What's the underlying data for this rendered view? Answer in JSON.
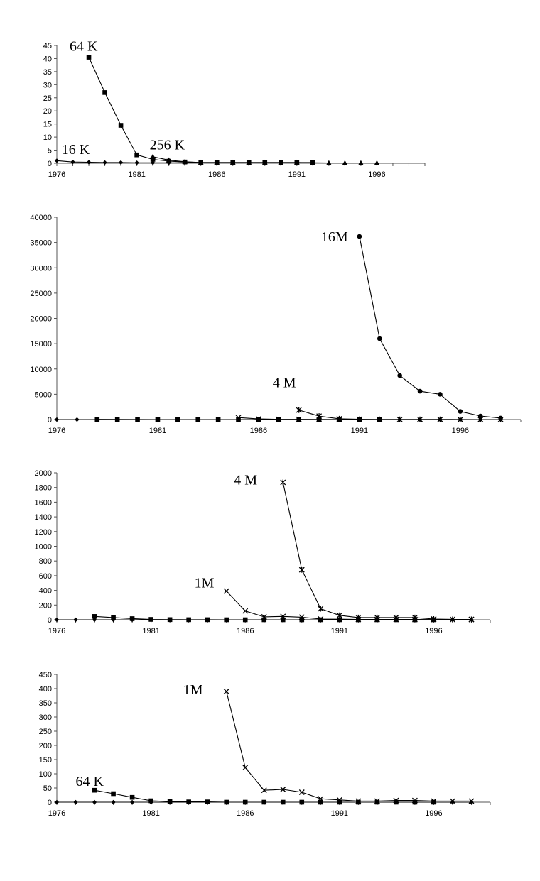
{
  "chart_data": [
    {
      "type": "line",
      "xlim": [
        1976,
        1999
      ],
      "ylim": [
        0,
        45
      ],
      "yticks": [
        0,
        5,
        10,
        15,
        20,
        25,
        30,
        35,
        40,
        45
      ],
      "xticks": [
        1976,
        1981,
        1986,
        1991,
        1996
      ],
      "grid": false,
      "series": [
        {
          "marker": "diamond",
          "x": [
            1976,
            1977,
            1978,
            1979,
            1980,
            1981,
            1982,
            1983,
            1984,
            1985,
            1986,
            1987,
            1988,
            1989,
            1990,
            1991,
            1992
          ],
          "y": [
            1.0,
            0.5,
            0.4,
            0.3,
            0.3,
            0.2,
            0.2,
            0.2,
            0.2,
            0.2,
            0.2,
            0.2,
            0.2,
            0.2,
            0.2,
            0.2,
            0.2
          ]
        },
        {
          "marker": "square",
          "x": [
            1978,
            1979,
            1980,
            1981,
            1982,
            1983,
            1984,
            1985,
            1986,
            1987,
            1988,
            1989,
            1990,
            1991,
            1992
          ],
          "y": [
            40.5,
            27,
            14.5,
            3.2,
            1.5,
            0.8,
            0.5,
            0.3,
            0.3,
            0.3,
            0.3,
            0.3,
            0.3,
            0.3,
            0.3
          ]
        },
        {
          "marker": "triangle",
          "x": [
            1982,
            1983,
            1984,
            1985,
            1986,
            1987,
            1988,
            1989,
            1990,
            1991,
            1992,
            1993,
            1994,
            1995,
            1996
          ],
          "y": [
            2.5,
            1.2,
            0.6,
            0.3,
            0.3,
            0.3,
            0.3,
            0.3,
            0.3,
            0.3,
            0.2,
            0.1,
            0.1,
            0.1,
            0.1
          ]
        }
      ],
      "annotations": [
        {
          "text": "64 K",
          "x": 1976.8,
          "y": 43
        },
        {
          "text": "16 K",
          "x": 1976.3,
          "y": 3.5
        },
        {
          "text": "256 K",
          "x": 1981.8,
          "y": 5.3
        }
      ]
    },
    {
      "type": "line",
      "xlim": [
        1976,
        1999
      ],
      "ylim": [
        0,
        40000
      ],
      "yticks": [
        0,
        5000,
        10000,
        15000,
        20000,
        25000,
        30000,
        35000,
        40000
      ],
      "xticks": [
        1976,
        1981,
        1986,
        1991,
        1996
      ],
      "grid": false,
      "series": [
        {
          "marker": "diamond",
          "x": [
            1976,
            1977,
            1978,
            1979,
            1980,
            1981,
            1982,
            1983,
            1984,
            1985,
            1986,
            1987,
            1988,
            1989,
            1990,
            1991,
            1992,
            1993,
            1994,
            1995,
            1996,
            1997,
            1998
          ],
          "y": [
            0,
            0,
            0,
            0,
            0,
            0,
            0,
            0,
            0,
            0,
            0,
            0,
            0,
            0,
            0,
            0,
            0,
            0,
            0,
            0,
            0,
            0,
            0
          ]
        },
        {
          "marker": "square",
          "x": [
            1978,
            1979,
            1980,
            1981,
            1982,
            1983,
            1984,
            1985,
            1986,
            1987,
            1988,
            1989,
            1990,
            1991,
            1992
          ],
          "y": [
            40,
            30,
            15,
            5,
            2,
            1,
            1,
            0,
            0,
            0,
            0,
            0,
            0,
            0,
            0
          ]
        },
        {
          "marker": "cross",
          "x": [
            1985,
            1986,
            1987,
            1988,
            1989,
            1990,
            1991,
            1992,
            1993,
            1994,
            1995,
            1996,
            1997,
            1998
          ],
          "y": [
            390,
            120,
            40,
            45,
            35,
            10,
            8,
            4,
            4,
            4,
            4,
            3,
            3,
            3
          ]
        },
        {
          "marker": "star",
          "x": [
            1988,
            1989,
            1990,
            1991,
            1992,
            1993,
            1994,
            1995,
            1996,
            1997,
            1998
          ],
          "y": [
            1870,
            680,
            150,
            60,
            30,
            30,
            30,
            30,
            10,
            5,
            5
          ]
        },
        {
          "marker": "circle",
          "x": [
            1991,
            1992,
            1993,
            1994,
            1995,
            1996,
            1997,
            1998
          ],
          "y": [
            36200,
            16000,
            8700,
            5600,
            5000,
            1600,
            700,
            300
          ]
        }
      ],
      "annotations": [
        {
          "text": "16M",
          "x": 1989.1,
          "y": 35200
        },
        {
          "text": "4 M",
          "x": 1986.7,
          "y": 6400
        }
      ]
    },
    {
      "type": "line",
      "xlim": [
        1976,
        1999
      ],
      "ylim": [
        0,
        2000
      ],
      "yticks": [
        0,
        200,
        400,
        600,
        800,
        1000,
        1200,
        1400,
        1600,
        1800,
        2000
      ],
      "xticks": [
        1976,
        1981,
        1986,
        1991,
        1996
      ],
      "grid": false,
      "series": [
        {
          "marker": "diamond",
          "x": [
            1976,
            1977,
            1978,
            1979,
            1980,
            1981,
            1982,
            1983,
            1984,
            1985,
            1986,
            1987,
            1988,
            1989,
            1990,
            1991,
            1992,
            1993,
            1994,
            1995,
            1996,
            1997,
            1998
          ],
          "y": [
            0,
            0,
            0,
            0,
            0,
            0,
            0,
            0,
            0,
            0,
            0,
            0,
            0,
            0,
            0,
            0,
            0,
            0,
            0,
            0,
            0,
            0,
            0
          ]
        },
        {
          "marker": "square",
          "x": [
            1978,
            1979,
            1980,
            1981,
            1982,
            1983,
            1984,
            1985,
            1986,
            1987,
            1988,
            1989,
            1990,
            1991,
            1992,
            1993,
            1994,
            1995,
            1996
          ],
          "y": [
            45,
            30,
            15,
            5,
            2,
            1,
            1,
            0,
            0,
            0,
            0,
            0,
            0,
            0,
            0,
            0,
            0,
            0,
            0
          ]
        },
        {
          "marker": "cross",
          "x": [
            1985,
            1986,
            1987,
            1988,
            1989,
            1990,
            1991,
            1992,
            1993,
            1994,
            1995,
            1996,
            1997,
            1998
          ],
          "y": [
            390,
            120,
            40,
            45,
            35,
            10,
            8,
            4,
            4,
            4,
            4,
            3,
            3,
            3
          ]
        },
        {
          "marker": "star",
          "x": [
            1988,
            1989,
            1990,
            1991,
            1992,
            1993,
            1994,
            1995,
            1996,
            1997,
            1998
          ],
          "y": [
            1870,
            680,
            150,
            60,
            30,
            30,
            30,
            30,
            10,
            5,
            5
          ]
        }
      ],
      "annotations": [
        {
          "text": "4 M",
          "x": 1985.4,
          "y": 1840
        },
        {
          "text": "1M",
          "x": 1983.3,
          "y": 440
        }
      ]
    },
    {
      "type": "line",
      "xlim": [
        1976,
        1999
      ],
      "ylim": [
        0,
        450
      ],
      "yticks": [
        0,
        50,
        100,
        150,
        200,
        250,
        300,
        350,
        400,
        450
      ],
      "xticks": [
        1976,
        1981,
        1986,
        1991,
        1996
      ],
      "grid": false,
      "series": [
        {
          "marker": "diamond",
          "x": [
            1976,
            1977,
            1978,
            1979,
            1980,
            1981,
            1982,
            1983,
            1984,
            1985,
            1986,
            1987,
            1988,
            1989,
            1990,
            1991,
            1992,
            1993,
            1994,
            1995,
            1996,
            1997,
            1998
          ],
          "y": [
            0,
            0,
            0,
            0,
            0,
            0,
            0,
            0,
            0,
            0,
            0,
            0,
            0,
            0,
            0,
            0,
            0,
            0,
            0,
            0,
            0,
            0,
            0
          ]
        },
        {
          "marker": "square",
          "x": [
            1978,
            1979,
            1980,
            1981,
            1982,
            1983,
            1984,
            1985,
            1986,
            1987,
            1988,
            1989,
            1990,
            1991,
            1992,
            1993,
            1994,
            1995,
            1996
          ],
          "y": [
            42,
            30,
            17,
            5,
            2,
            1,
            1,
            0,
            0,
            0,
            0,
            0,
            0,
            0,
            0,
            0,
            0,
            0,
            0
          ]
        },
        {
          "marker": "cross",
          "x": [
            1985,
            1986,
            1987,
            1988,
            1989,
            1990,
            1991,
            1992,
            1993,
            1994,
            1995,
            1996,
            1997,
            1998
          ],
          "y": [
            390,
            122,
            42,
            45,
            35,
            12,
            8,
            4,
            4,
            6,
            6,
            4,
            4,
            4
          ]
        }
      ],
      "annotations": [
        {
          "text": "1M",
          "x": 1982.7,
          "y": 380
        },
        {
          "text": "64 K",
          "x": 1977.0,
          "y": 58
        }
      ]
    }
  ]
}
